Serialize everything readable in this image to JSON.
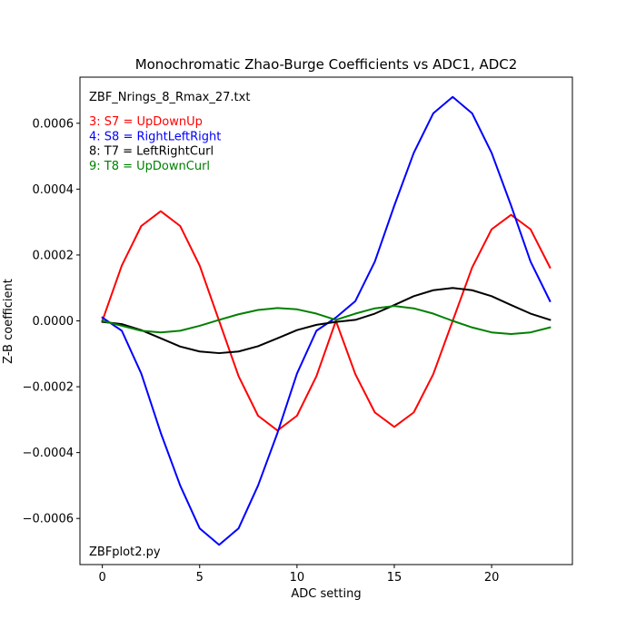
{
  "chart_data": {
    "type": "line",
    "title": "Monochromatic Zhao-Burge Coefficients vs ADC1, ADC2",
    "xlabel": "ADC setting",
    "ylabel": "Z-B coefficient",
    "xlim": [
      -1.15,
      24.15
    ],
    "ylim": [
      -0.00074,
      0.00074
    ],
    "xticks": [
      0,
      5,
      10,
      15,
      20
    ],
    "xtick_labels": [
      "0",
      "5",
      "10",
      "15",
      "20"
    ],
    "yticks": [
      -0.0006,
      -0.0004,
      -0.0002,
      0.0,
      0.0002,
      0.0004,
      0.0006
    ],
    "ytick_labels": [
      "−0.0006",
      "−0.0004",
      "−0.0002",
      "0.0000",
      "0.0002",
      "0.0004",
      "0.0006"
    ],
    "grid": false,
    "legend_position": "top-left",
    "annotations": {
      "file_label": "ZBF_Nrings_8_Rmax_27.txt",
      "script_label": "ZBFplot2.py"
    },
    "x": [
      0,
      1,
      2,
      3,
      4,
      5,
      6,
      7,
      8,
      9,
      10,
      11,
      12,
      13,
      14,
      15,
      16,
      17,
      18,
      19,
      20,
      21,
      22,
      23
    ],
    "series": [
      {
        "name": "3: S7 = UpDownUp",
        "color": "#ff0000",
        "values": [
          0.0,
          0.000168,
          0.000288,
          0.000333,
          0.000288,
          0.000168,
          0.0,
          -0.000168,
          -0.000288,
          -0.000333,
          -0.000288,
          -0.000168,
          0.0,
          -0.000162,
          -0.000278,
          -0.000322,
          -0.000278,
          -0.000162,
          0.0,
          0.000162,
          0.000278,
          0.000322,
          0.000278,
          0.000162
        ]
      },
      {
        "name": "4: S8 = RightLeftRight",
        "color": "#0000ff",
        "values": [
          1e-05,
          -3e-05,
          -0.00016,
          -0.00034,
          -0.0005,
          -0.00063,
          -0.00068,
          -0.00063,
          -0.0005,
          -0.00034,
          -0.00016,
          -3e-05,
          1e-05,
          6e-05,
          0.00018,
          0.00035,
          0.00051,
          0.00063,
          0.00068,
          0.00063,
          0.00051,
          0.00035,
          0.00018,
          6e-05
        ]
      },
      {
        "name": "8: T7 = LeftRightCurl",
        "color": "#000000",
        "values": [
          -3e-06,
          -1e-05,
          -2.8e-05,
          -5.3e-05,
          -7.8e-05,
          -9.3e-05,
          -9.8e-05,
          -9.3e-05,
          -7.7e-05,
          -5.3e-05,
          -2.8e-05,
          -1.2e-05,
          -3e-06,
          3e-06,
          2.2e-05,
          4.8e-05,
          7.5e-05,
          9.3e-05,
          0.0001,
          9.3e-05,
          7.5e-05,
          4.8e-05,
          2.2e-05,
          3e-06
        ]
      },
      {
        "name": "9: T8 = UpDownCurl",
        "color": "#008000",
        "values": [
          0.0,
          -1.5e-05,
          -3e-05,
          -3.5e-05,
          -3e-05,
          -1.5e-05,
          3e-06,
          2e-05,
          3.3e-05,
          3.9e-05,
          3.5e-05,
          2.2e-05,
          3e-06,
          2.2e-05,
          3.8e-05,
          4.5e-05,
          3.8e-05,
          2.2e-05,
          0.0,
          -2e-05,
          -3.5e-05,
          -4e-05,
          -3.5e-05,
          -2e-05
        ]
      }
    ]
  }
}
